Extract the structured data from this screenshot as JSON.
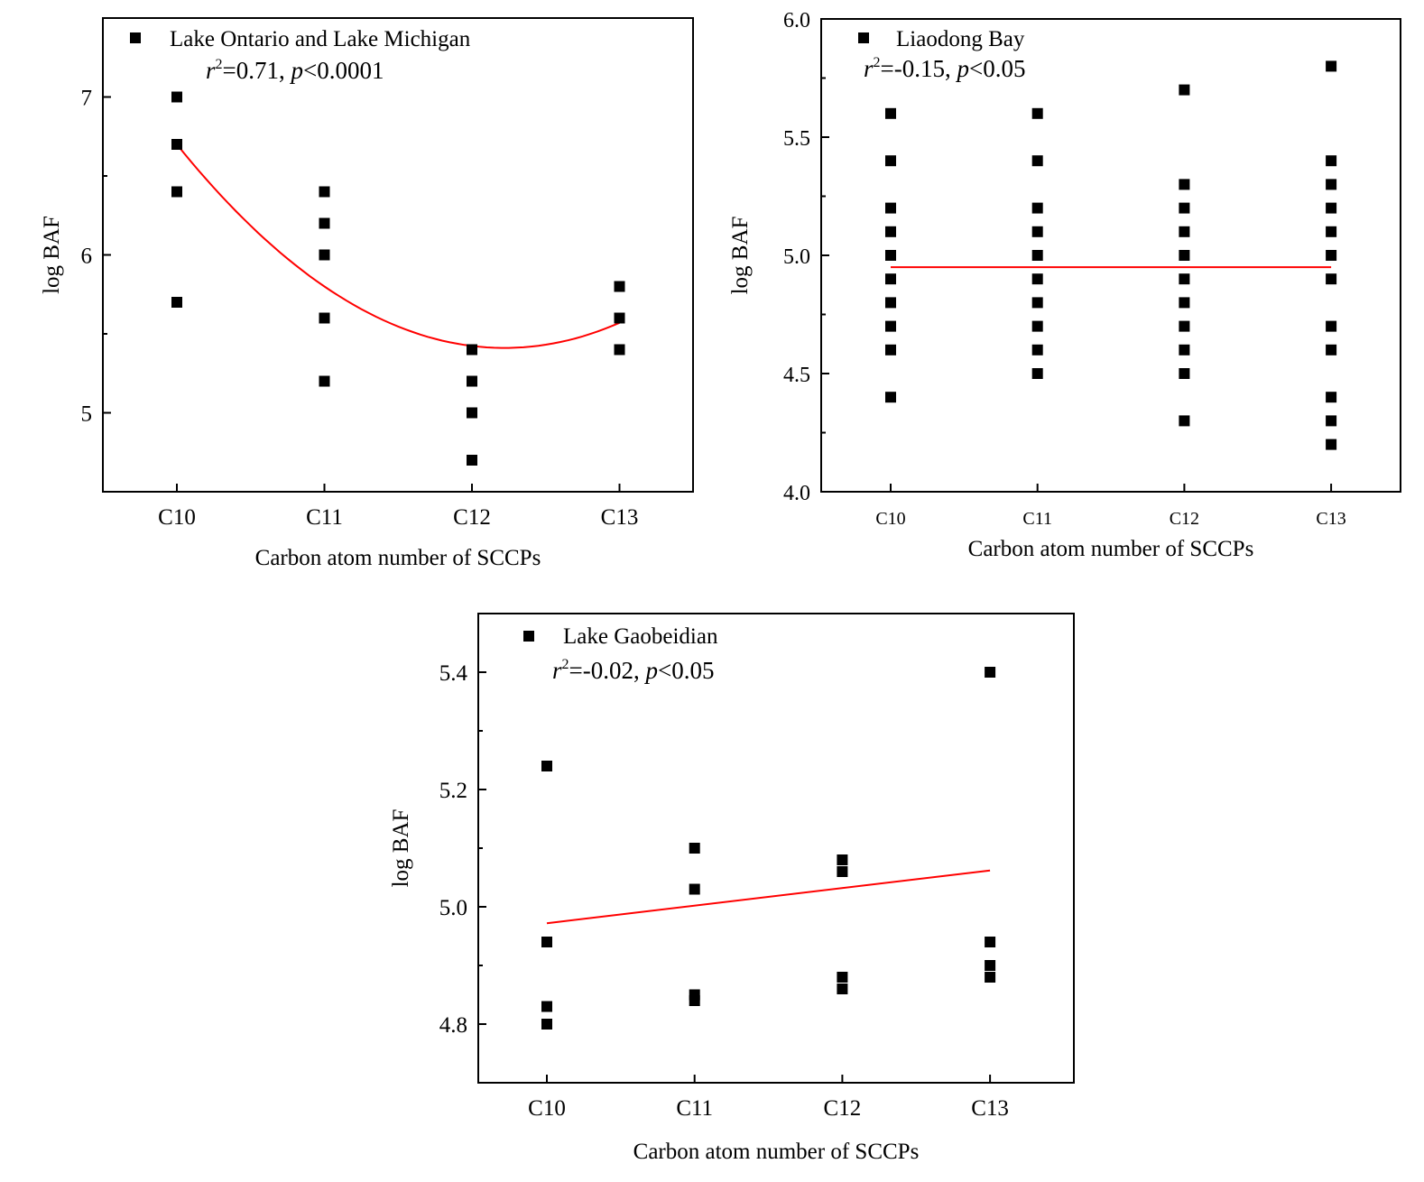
{
  "colors": {
    "marker": "#000000",
    "fit": "#ff0000",
    "axis": "#000000"
  },
  "chart_data": [
    {
      "type": "scatter",
      "id": "chart-lake-ontario-michigan",
      "legend": "Lake Ontario and Lake Michigan",
      "stat": {
        "r2_label": "r",
        "r2_sup": "2",
        "r2_value": "=0.71, ",
        "p_label": "p",
        "p_value": "<0.0001"
      },
      "xlabel": "Carbon atom number of SCCPs",
      "ylabel": "log BAF",
      "categories": [
        "C10",
        "C11",
        "C12",
        "C13"
      ],
      "ylim": [
        4.5,
        7.5
      ],
      "yticks": [
        5,
        6,
        7
      ],
      "ytick_labels": [
        "5",
        "6",
        "7"
      ],
      "yminor": [
        5.5,
        6.5
      ],
      "legend_placement": "top-left",
      "series": [
        {
          "category": "C10",
          "values": [
            7.0,
            6.7,
            6.4,
            5.7
          ]
        },
        {
          "category": "C11",
          "values": [
            6.4,
            6.2,
            6.0,
            5.6,
            5.2
          ]
        },
        {
          "category": "C12",
          "values": [
            5.4,
            5.2,
            5.0,
            4.7
          ]
        },
        {
          "category": "C13",
          "values": [
            5.8,
            5.6,
            5.4
          ]
        }
      ],
      "fit": {
        "type": "quadratic",
        "points": [
          [
            0,
            6.7
          ],
          [
            1,
            5.8
          ],
          [
            3,
            5.57
          ]
        ]
      }
    },
    {
      "type": "scatter",
      "id": "chart-liaodong-bay",
      "legend": "Liaodong Bay",
      "stat": {
        "r2_label": "r",
        "r2_sup": "2",
        "r2_value": "=-0.15, ",
        "p_label": "p",
        "p_value": "<0.05"
      },
      "xlabel": "Carbon atom number of SCCPs",
      "ylabel": "log BAF",
      "categories": [
        "C10",
        "C11",
        "C12",
        "C13"
      ],
      "ylim": [
        4.0,
        6.0
      ],
      "yticks": [
        4.0,
        4.5,
        5.0,
        5.5,
        6.0
      ],
      "ytick_labels": [
        "4.0",
        "4.5",
        "5.0",
        "5.5",
        "6.0"
      ],
      "yminor": [
        4.25,
        4.75,
        5.25,
        5.75
      ],
      "legend_placement": "top-left",
      "series": [
        {
          "category": "C10",
          "values": [
            5.6,
            5.4,
            5.2,
            5.1,
            5.0,
            4.9,
            4.8,
            4.7,
            4.6,
            4.4
          ]
        },
        {
          "category": "C11",
          "values": [
            5.6,
            5.4,
            5.2,
            5.1,
            5.0,
            4.9,
            4.8,
            4.7,
            4.6,
            4.5
          ]
        },
        {
          "category": "C12",
          "values": [
            5.7,
            5.3,
            5.2,
            5.1,
            5.0,
            4.9,
            4.8,
            4.7,
            4.6,
            4.5,
            4.3
          ]
        },
        {
          "category": "C13",
          "values": [
            5.8,
            5.4,
            5.3,
            5.2,
            5.1,
            5.0,
            4.9,
            4.7,
            4.6,
            4.4,
            4.3,
            4.2
          ]
        }
      ],
      "fit": {
        "type": "linear",
        "points": [
          [
            0,
            4.95
          ],
          [
            3,
            4.95
          ]
        ]
      }
    },
    {
      "type": "scatter",
      "id": "chart-lake-gaobeidian",
      "legend": "Lake Gaobeidian",
      "stat": {
        "r2_label": "r",
        "r2_sup": "2",
        "r2_value": "=-0.02, ",
        "p_label": "p",
        "p_value": "<0.05"
      },
      "xlabel": "Carbon atom number of SCCPs",
      "ylabel": "log BAF",
      "categories": [
        "C10",
        "C11",
        "C12",
        "C13"
      ],
      "ylim": [
        4.7,
        5.5
      ],
      "yticks": [
        4.8,
        5.0,
        5.2,
        5.4
      ],
      "ytick_labels": [
        "4.8",
        "5.0",
        "5.2",
        "5.4"
      ],
      "yminor": [
        4.9,
        5.1,
        5.3
      ],
      "legend_placement": "top-left",
      "series": [
        {
          "category": "C10",
          "values": [
            5.24,
            4.94,
            4.83,
            4.8
          ]
        },
        {
          "category": "C11",
          "values": [
            5.1,
            5.03,
            4.85,
            4.84
          ]
        },
        {
          "category": "C12",
          "values": [
            5.08,
            5.06,
            4.88,
            4.86
          ]
        },
        {
          "category": "C13",
          "values": [
            5.4,
            4.94,
            4.9,
            4.88
          ]
        }
      ],
      "fit": {
        "type": "linear",
        "points": [
          [
            0,
            4.972
          ],
          [
            3,
            5.062
          ]
        ]
      }
    }
  ]
}
